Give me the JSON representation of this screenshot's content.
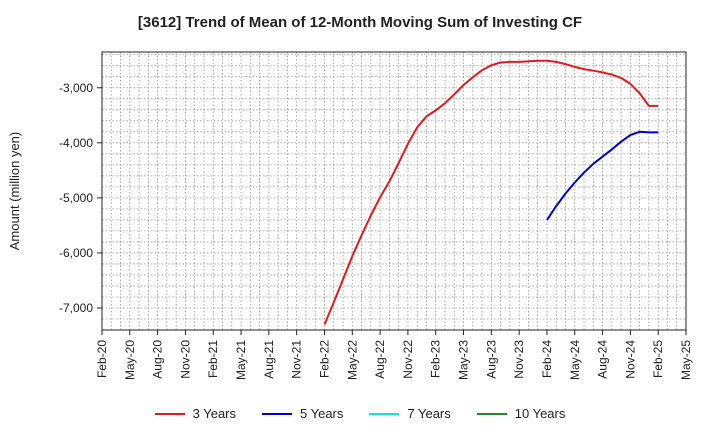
{
  "chart_data": {
    "type": "line",
    "title": "[3612]  Trend of Mean of 12-Month Moving Sum of Investing CF",
    "ylabel": "Amount (million yen)",
    "xlabel": "",
    "ylim": [
      -7400,
      -2350
    ],
    "y_ticks": [
      -7000,
      -6000,
      -5000,
      -4000,
      -3000
    ],
    "y_tick_labels": [
      "-7,000",
      "-6,000",
      "-5,000",
      "-4,000",
      "-3,000"
    ],
    "x_start": "2020-02",
    "x_end": "2025-05",
    "x_ticks": [
      "2020-02",
      "2020-05",
      "2020-08",
      "2020-11",
      "2021-02",
      "2021-05",
      "2021-08",
      "2021-11",
      "2022-02",
      "2022-05",
      "2022-08",
      "2022-11",
      "2023-02",
      "2023-05",
      "2023-08",
      "2023-11",
      "2024-02",
      "2024-05",
      "2024-08",
      "2024-11",
      "2025-02",
      "2025-05"
    ],
    "x_tick_labels": [
      "Feb-20",
      "May-20",
      "Aug-20",
      "Nov-20",
      "Feb-21",
      "May-21",
      "Aug-21",
      "Nov-21",
      "Feb-22",
      "May-22",
      "Aug-22",
      "Nov-22",
      "Feb-23",
      "May-23",
      "Aug-23",
      "Nov-23",
      "Feb-24",
      "May-24",
      "Aug-24",
      "Nov-24",
      "Feb-25",
      "May-25"
    ],
    "grid": true,
    "legend_position": "bottom",
    "series": [
      {
        "name": "3 Years",
        "color": "#e31a1c",
        "x": [
          "2022-02",
          "2022-03",
          "2022-04",
          "2022-05",
          "2022-06",
          "2022-07",
          "2022-08",
          "2022-09",
          "2022-10",
          "2022-11",
          "2022-12",
          "2023-01",
          "2023-02",
          "2023-03",
          "2023-04",
          "2023-05",
          "2023-06",
          "2023-07",
          "2023-08",
          "2023-09",
          "2023-10",
          "2023-11",
          "2023-12",
          "2024-01",
          "2024-02",
          "2024-03",
          "2024-04",
          "2024-05",
          "2024-06",
          "2024-07",
          "2024-08",
          "2024-09",
          "2024-10",
          "2024-11",
          "2024-12",
          "2025-01",
          "2025-02"
        ],
        "y": [
          -7300,
          -6900,
          -6480,
          -6060,
          -5680,
          -5320,
          -4990,
          -4700,
          -4370,
          -4020,
          -3720,
          -3520,
          -3410,
          -3280,
          -3120,
          -2950,
          -2810,
          -2680,
          -2590,
          -2540,
          -2530,
          -2530,
          -2520,
          -2510,
          -2510,
          -2530,
          -2570,
          -2620,
          -2660,
          -2690,
          -2720,
          -2760,
          -2820,
          -2930,
          -3100,
          -3330,
          -3330
        ],
        "x_end_trim": "2025-02"
      },
      {
        "name": "5 Years",
        "color": "#0000cc",
        "x": [
          "2024-02",
          "2024-03",
          "2024-04",
          "2024-05",
          "2024-06",
          "2024-07",
          "2024-08",
          "2024-09",
          "2024-10",
          "2024-11",
          "2024-12",
          "2025-01",
          "2025-02"
        ],
        "y": [
          -5400,
          -5150,
          -4920,
          -4720,
          -4540,
          -4380,
          -4250,
          -4120,
          -3980,
          -3860,
          -3800,
          -3810,
          -3810
        ]
      },
      {
        "name": "7 Years",
        "color": "#00e5ee",
        "x": [],
        "y": []
      },
      {
        "name": "10 Years",
        "color": "#228b22",
        "x": [],
        "y": []
      }
    ]
  }
}
